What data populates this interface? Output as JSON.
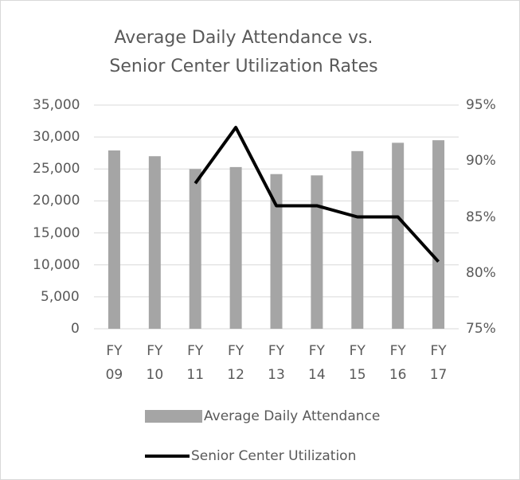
{
  "chart_data": {
    "type": "bar-line",
    "title": "Average Daily Attendance vs. Senior Center Utilization Rates",
    "categories": [
      "FY 09",
      "FY 10",
      "FY 11",
      "FY 12",
      "FY 13",
      "FY 14",
      "FY 15",
      "FY 16",
      "FY 17"
    ],
    "series": [
      {
        "name": "Average Daily Attendance",
        "type": "bar",
        "color": "#a5a5a5",
        "values": [
          27900,
          27000,
          25000,
          25300,
          24200,
          24000,
          27800,
          29100,
          29500
        ]
      },
      {
        "name": "Senior Center Utilization",
        "type": "line",
        "axis": "y2",
        "color": "#000000",
        "values": [
          null,
          null,
          88,
          93,
          86,
          86,
          85,
          85,
          81
        ]
      }
    ],
    "ylim": [
      0,
      35000
    ],
    "yticks": [
      0,
      {
        "value": 5000,
        "label": "5,000"
      },
      {
        "value": 10000,
        "label": "10,000"
      },
      {
        "value": 15000,
        "label": "15,000"
      },
      {
        "value": 20000,
        "label": "20,000"
      },
      {
        "value": 25000,
        "label": "25,000"
      },
      {
        "value": 30000,
        "label": "30,000"
      },
      {
        "value": 35000,
        "label": "35,000"
      }
    ],
    "y2lim": [
      75,
      95
    ],
    "y2ticks": [
      {
        "value": 75,
        "label": "75%"
      },
      {
        "value": 80,
        "label": "80%"
      },
      {
        "value": 85,
        "label": "85%"
      },
      {
        "value": 90,
        "label": "90%"
      },
      {
        "value": 95,
        "label": "95%"
      }
    ],
    "grid": true,
    "legend": "bottom"
  }
}
